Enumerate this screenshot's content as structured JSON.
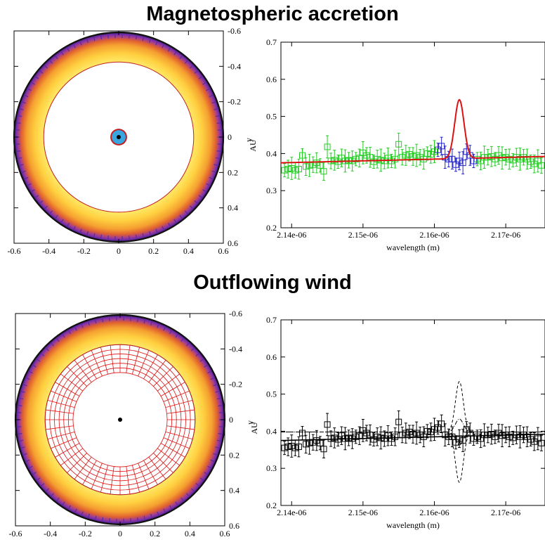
{
  "sections": [
    {
      "title": "Magnetospheric accretion"
    },
    {
      "title": "Outflowing wind"
    }
  ],
  "chart_data": [
    {
      "type": "scatter",
      "panel": "disk-map-accretion",
      "x_ticks": [
        "-0.6",
        "-0.4",
        "-0.2",
        "0",
        "0.2",
        "0.4",
        "0.6"
      ],
      "y_ticks": [
        "-0.6",
        "-0.4",
        "-0.2",
        "0",
        "0.2",
        "0.4",
        "0.6"
      ],
      "ylabel": "y",
      "yunit": "AU",
      "xlim": [
        -0.6,
        0.6
      ],
      "ylim": [
        -0.6,
        0.6
      ],
      "disk_outer_radius": 0.6,
      "disk_inner_radius": 0.43,
      "star_radius": 0.04,
      "features": [
        "accretion-columns"
      ],
      "colors": {
        "disk_outer": "#3a1a5c",
        "disk_mid": "#d65a2a",
        "disk_inner": "#ffe85a",
        "star": "#3aa6e0",
        "inner_edge": "#c02020"
      }
    },
    {
      "type": "line",
      "panel": "spectrum-accretion",
      "xlabel": "wavelength (m)",
      "x_ticks": [
        "2.14e-06",
        "2.15e-06",
        "2.16e-06",
        "2.17e-06"
      ],
      "y_ticks": [
        "0.2",
        "0.3",
        "0.4",
        "0.5",
        "0.6",
        "0.7"
      ],
      "xlim": [
        2.1385e-06,
        2.1755e-06
      ],
      "ylim": [
        0.2,
        0.7
      ],
      "series": [
        {
          "type": "scatter-errorbar",
          "color": "#22cc22",
          "x": [
            2.139e-06,
            2.1395e-06,
            2.14e-06,
            2.1405e-06,
            2.141e-06,
            2.1415e-06,
            2.142e-06,
            2.1425e-06,
            2.143e-06,
            2.1435e-06,
            2.144e-06,
            2.1445e-06,
            2.145e-06,
            2.1455e-06,
            2.146e-06,
            2.1465e-06,
            2.147e-06,
            2.1475e-06,
            2.148e-06,
            2.1485e-06,
            2.149e-06,
            2.1495e-06,
            2.15e-06,
            2.1505e-06,
            2.151e-06,
            2.1515e-06,
            2.152e-06,
            2.1525e-06,
            2.153e-06,
            2.1535e-06,
            2.154e-06,
            2.1545e-06,
            2.155e-06,
            2.1555e-06,
            2.156e-06,
            2.1565e-06,
            2.157e-06,
            2.1575e-06,
            2.158e-06,
            2.1585e-06,
            2.159e-06,
            2.1595e-06,
            2.16e-06
          ],
          "y": [
            0.355,
            0.358,
            0.36,
            0.355,
            0.358,
            0.395,
            0.365,
            0.368,
            0.37,
            0.375,
            0.368,
            0.352,
            0.418,
            0.38,
            0.382,
            0.378,
            0.388,
            0.38,
            0.382,
            0.38,
            0.385,
            0.388,
            0.402,
            0.395,
            0.39,
            0.378,
            0.385,
            0.382,
            0.38,
            0.388,
            0.38,
            0.385,
            0.425,
            0.39,
            0.395,
            0.398,
            0.392,
            0.395,
            0.39,
            0.385,
            0.4,
            0.398,
            0.405
          ]
        },
        {
          "type": "scatter-errorbar",
          "color": "#2222cc",
          "x": [
            2.1605e-06,
            2.161e-06,
            2.1615e-06,
            2.162e-06,
            2.1625e-06,
            2.163e-06,
            2.1635e-06,
            2.164e-06,
            2.1645e-06,
            2.165e-06,
            2.1655e-06
          ],
          "y": [
            0.41,
            0.42,
            0.39,
            0.385,
            0.385,
            0.37,
            0.38,
            0.375,
            0.405,
            0.395,
            0.38
          ]
        },
        {
          "type": "scatter-errorbar",
          "color": "#22cc22",
          "x": [
            2.166e-06,
            2.1665e-06,
            2.167e-06,
            2.1675e-06,
            2.168e-06,
            2.1685e-06,
            2.169e-06,
            2.1695e-06,
            2.17e-06,
            2.1705e-06,
            2.171e-06,
            2.1715e-06,
            2.172e-06,
            2.1725e-06,
            2.173e-06,
            2.1735e-06,
            2.174e-06,
            2.1745e-06,
            2.175e-06
          ],
          "y": [
            0.385,
            0.38,
            0.39,
            0.39,
            0.392,
            0.385,
            0.395,
            0.388,
            0.39,
            0.385,
            0.382,
            0.39,
            0.385,
            0.39,
            0.385,
            0.378,
            0.372,
            0.38,
            0.368
          ]
        },
        {
          "type": "line",
          "color": "#dd1111",
          "model": "accretion",
          "baseline": [
            0.375,
            0.392
          ],
          "peak": 0.545,
          "center": 2.1635e-06,
          "sigma": 6.5e-10
        }
      ]
    },
    {
      "type": "scatter",
      "panel": "disk-map-wind",
      "x_ticks": [
        "-0.6",
        "-0.4",
        "-0.2",
        "0",
        "0.2",
        "0.4",
        "0.6"
      ],
      "y_ticks": [
        "-0.6",
        "-0.4",
        "-0.2",
        "0",
        "0.2",
        "0.4",
        "0.6"
      ],
      "ylabel": "y",
      "yunit": "AU",
      "xlim": [
        -0.6,
        0.6
      ],
      "ylim": [
        -0.6,
        0.6
      ],
      "disk_outer_radius": 0.6,
      "disk_inner_radius": 0.43,
      "wind_outer_radius": 0.43,
      "wind_inner_radius": 0.27,
      "star_radius": 0.012,
      "features": [
        "wind-grid"
      ],
      "colors": {
        "disk_outer": "#3a1a5c",
        "disk_mid": "#d65a2a",
        "disk_inner": "#ffe85a",
        "wind_grid": "#dd1111",
        "star": "#000000"
      }
    },
    {
      "type": "line",
      "panel": "spectrum-wind",
      "xlabel": "wavelength (m)",
      "x_ticks": [
        "2.14e-06",
        "2.15e-06",
        "2.16e-06",
        "2.17e-06"
      ],
      "y_ticks": [
        "0.2",
        "0.3",
        "0.4",
        "0.5",
        "0.6",
        "0.7"
      ],
      "xlim": [
        2.1385e-06,
        2.1755e-06
      ],
      "ylim": [
        0.2,
        0.7
      ],
      "series": [
        {
          "type": "scatter-errorbar",
          "color": "#000000",
          "x_from": "spectrum-accretion",
          "note_points": "same observations as upper panel"
        },
        {
          "type": "line",
          "color": "#000000",
          "style": "solid",
          "model": "wind",
          "baseline": [
            0.375,
            0.392
          ]
        },
        {
          "type": "line",
          "color": "#000000",
          "style": "dashed",
          "model": "wind-envelope",
          "center": 2.1635e-06,
          "amplitude": 0.16
        },
        {
          "type": "line",
          "color": "#000000",
          "style": "dashdot",
          "model": "wind-inner",
          "center": 2.1635e-06,
          "amplitude": 0.035
        }
      ]
    }
  ]
}
